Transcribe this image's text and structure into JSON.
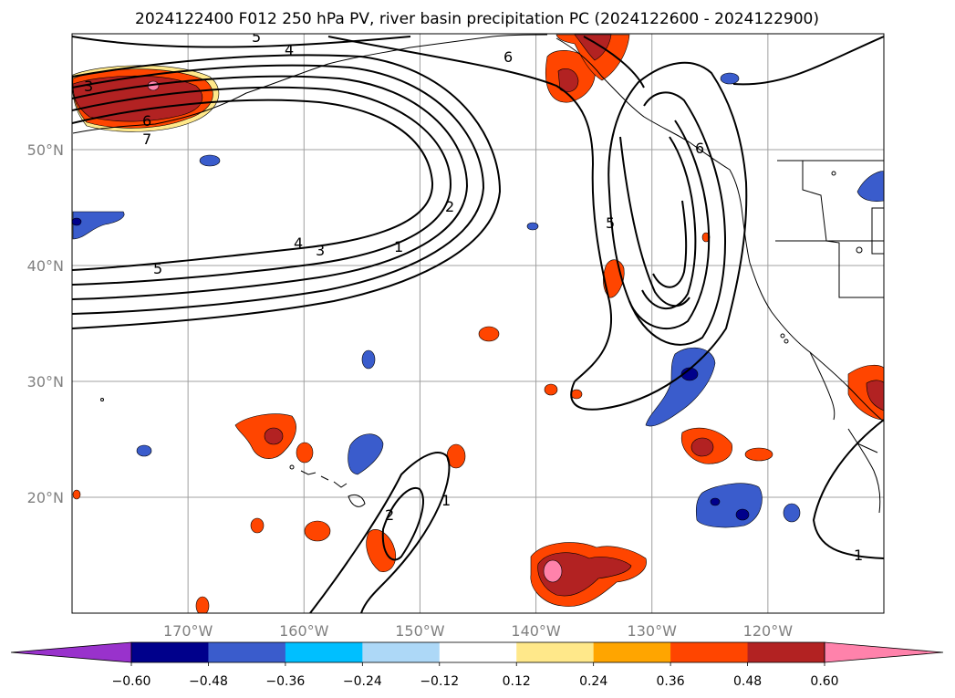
{
  "chart_data": {
    "type": "map-contour",
    "title": "2024122400 F012 250 hPa PV, river basin precipitation PC (2024122600 - 2024122900)",
    "lon_range": [
      -180,
      -110
    ],
    "lat_range": [
      10,
      60
    ],
    "lon_ticks": [
      {
        "value": -170,
        "label": "170°W"
      },
      {
        "value": -160,
        "label": "160°W"
      },
      {
        "value": -150,
        "label": "150°W"
      },
      {
        "value": -140,
        "label": "140°W"
      },
      {
        "value": -130,
        "label": "130°W"
      },
      {
        "value": -120,
        "label": "120°W"
      }
    ],
    "lat_ticks": [
      {
        "value": 20,
        "label": "20°N"
      },
      {
        "value": 30,
        "label": "30°N"
      },
      {
        "value": 40,
        "label": "40°N"
      },
      {
        "value": 50,
        "label": "50°N"
      }
    ],
    "grid": true,
    "colorbar": {
      "extend": "both",
      "ticks": [
        "−0.60",
        "−0.48",
        "−0.36",
        "−0.24",
        "−0.12",
        "0.12",
        "0.24",
        "0.36",
        "0.48",
        "0.60"
      ],
      "colors": [
        "#9932cc",
        "#00008b",
        "#3a5ccc",
        "#00bfff",
        "#add8f7",
        "#ffffff",
        "#ffe88a",
        "#ffa500",
        "#ff4500",
        "#b22222",
        "#ff82ab"
      ]
    },
    "pv_contour_labels": [
      "5",
      "4",
      "6",
      "3",
      "6",
      "7",
      "2",
      "1",
      "4",
      "3",
      "5",
      "5",
      "6",
      "2",
      "1",
      "1"
    ]
  }
}
